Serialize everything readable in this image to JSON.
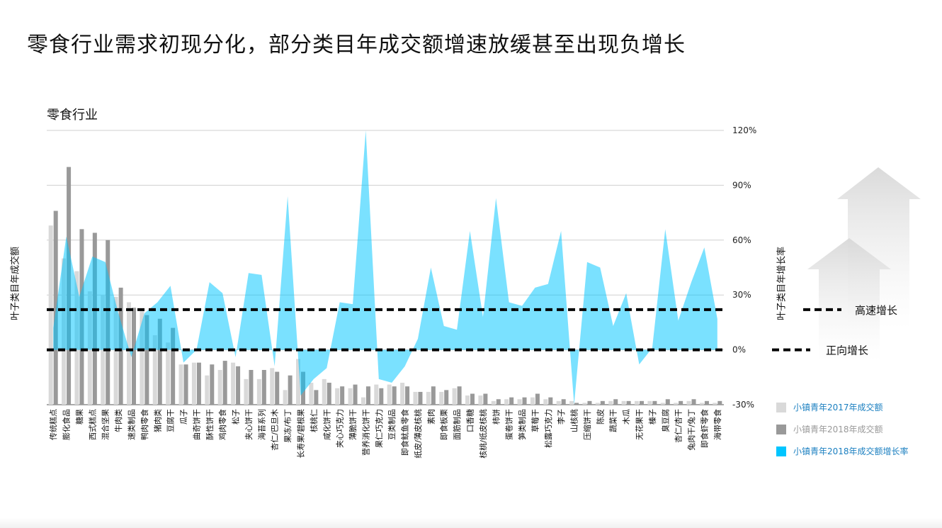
{
  "page": {
    "title": "零食行业需求初现分化，部分类目年成交额增速放缓甚至出现负增长"
  },
  "chart_data": {
    "type": "bar",
    "title": "零食行业",
    "ylabel_left": "叶子类目年成交额",
    "ylabel_right": "叶子类目年增长率",
    "y2_ticks": [
      "120%",
      "90%",
      "60%",
      "30%",
      "0%",
      "-30%"
    ],
    "y2lim": [
      -30,
      120
    ],
    "grid": true,
    "legend_position": "right",
    "categories": [
      "传统糕点",
      "膨化食品",
      "糖果",
      "西式糕点",
      "混合坚果",
      "牛肉类",
      "速类制品",
      "鸭肉零食",
      "猪肉类",
      "豆腐干",
      "瓜子",
      "曲奇饼干",
      "酥性饼干",
      "鸡肉零食",
      "松子",
      "夹心饼干",
      "海苔系列",
      "杏仁/巴旦木",
      "果冻/布丁",
      "长寿果/碧根果",
      "核桃仁",
      "咸化饼干",
      "夹心巧克力",
      "薄脆饼干",
      "营养消化饼干",
      "果仁巧克力",
      "豆类制品",
      "即食鱿鱼零食",
      "纸皮/薄皮核桃",
      "素肉",
      "即食板栗",
      "面筋制品",
      "口香糖",
      "核桃/纸皮核桃",
      "柿饼",
      "蛋卷饼干",
      "笋类制品",
      "草莓干",
      "松露巧克力",
      "李子",
      "山核桃",
      "压缩饼干",
      "陈皮",
      "蔬菜干",
      "木瓜",
      "无花果干",
      "榛子",
      "臭豆腐",
      "杏仁/杏干",
      "兔肉干/兔丁",
      "即食虾零食",
      "海带零食"
    ],
    "series": [
      {
        "name": "小镇青年2017年成交额",
        "color": "#d9d9d9",
        "values": [
          68,
          50,
          43,
          32,
          30,
          29,
          26,
          22,
          8,
          4,
          -8,
          -7,
          -14,
          -11,
          -7,
          -16,
          -16,
          -10,
          -22,
          -5,
          -18,
          -16,
          -21,
          -21,
          -26,
          -19,
          -19,
          -18,
          -23,
          -23,
          -23,
          -21,
          -25,
          -25,
          -28,
          -27,
          -27,
          -26,
          -27,
          -28,
          -28,
          -29,
          -29,
          -28,
          -28,
          -28,
          -28,
          -29,
          -29,
          -28,
          -29,
          -29
        ]
      },
      {
        "name": "小镇青年2018年成交额",
        "color": "#999999",
        "values": [
          76,
          100,
          66,
          64,
          60,
          34,
          23,
          19,
          17,
          12,
          -8,
          -7,
          -8,
          -6,
          -9,
          -11,
          -11,
          -12,
          -14,
          -12,
          -22,
          -18,
          -20,
          -19,
          -20,
          -21,
          -20,
          -20,
          -23,
          -20,
          -22,
          -20,
          -24,
          -24,
          -27,
          -26,
          -26,
          -24,
          -26,
          -27,
          -29,
          -28,
          -28,
          -27,
          -28,
          -28,
          -28,
          -27,
          -28,
          -27,
          -28,
          -28
        ]
      },
      {
        "name": "小镇青年2018年成交额增长率",
        "color": "#00c5ff",
        "values": [
          12,
          62,
          29,
          51,
          48,
          20,
          -4,
          20,
          26,
          35,
          -7,
          0,
          37,
          31,
          -4,
          42,
          41,
          -9,
          84,
          -25,
          -16,
          -10,
          26,
          25,
          125,
          -16,
          -18,
          -9,
          6,
          45,
          13,
          11,
          65,
          18,
          83,
          26,
          24,
          34,
          36,
          65,
          -30,
          48,
          45,
          13,
          31,
          -8,
          1,
          66,
          16,
          37,
          56,
          17
        ]
      }
    ],
    "reference_lines": [
      {
        "label": "高速增长",
        "value": 22
      },
      {
        "label": "正向增长",
        "value": 0
      }
    ]
  }
}
